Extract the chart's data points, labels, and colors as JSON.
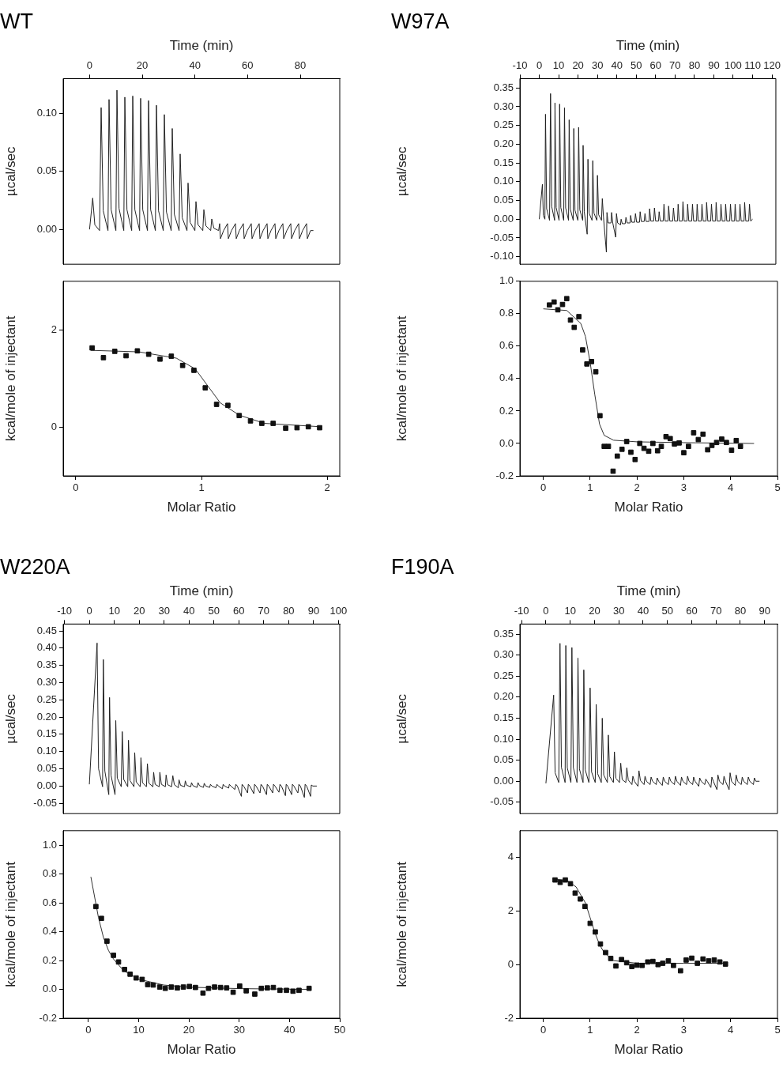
{
  "chart_data": [
    {
      "type": "line",
      "title": "WT",
      "xlabel": "Time (min)",
      "ylabel": "µcal/sec",
      "xlim": [
        -10,
        95
      ],
      "xticks": [
        0,
        20,
        40,
        60,
        80
      ],
      "ylim": [
        -0.03,
        0.13
      ],
      "yticks": [
        {
          "value": 0,
          "label": "0.00"
        },
        {
          "value": 0.05,
          "label": "0.05"
        },
        {
          "value": 0.1,
          "label": "0.10"
        }
      ],
      "series": [
        {
          "color": "#222222",
          "marker": "none",
          "x": [
            0,
            1.2,
            2.0,
            3.8,
            4.4,
            5.2,
            7.0,
            7.4,
            8.2,
            10.0,
            10.4,
            11.2,
            13.0,
            13.4,
            14.2,
            16.0,
            16.4,
            17.2,
            19.0,
            19.4,
            20.2,
            22.0,
            22.4,
            23.2,
            25.0,
            25.4,
            26.2,
            28.0,
            28.4,
            29.2,
            31.0,
            31.4,
            32.2,
            34.0,
            34.4,
            35.2,
            37.0,
            37.4,
            38.2,
            40.0,
            40.4,
            41.2,
            43.0,
            43.4,
            44.2,
            46.0,
            46.4,
            47.2,
            49.0,
            49.4,
            49.7,
            50.9,
            52.4,
            52.7,
            53.9,
            55.4,
            55.7,
            56.9,
            58.4,
            58.7,
            59.9,
            61.4,
            61.7,
            62.9,
            64.4,
            64.7,
            65.9,
            67.4,
            67.7,
            68.9,
            70.4,
            70.7,
            71.9,
            73.4,
            73.7,
            74.9,
            76.4,
            76.7,
            77.9,
            79.4,
            79.7,
            80.9,
            82.4,
            82.7,
            83.9,
            85
          ],
          "values": [
            0,
            0.027,
            0.004,
            -0.001,
            0.105,
            0.016,
            -0.001,
            0.112,
            0.017,
            -0.001,
            0.12,
            0.018,
            -0.001,
            0.114,
            0.017,
            -0.001,
            0.115,
            0.017,
            -0.001,
            0.113,
            0.017,
            -0.001,
            0.111,
            0.017,
            -0.001,
            0.107,
            0.016,
            -0.001,
            0.099,
            0.015,
            -0.001,
            0.087,
            0.013,
            -0.001,
            0.065,
            0.01,
            -0.001,
            0.04,
            0.006,
            -0.001,
            0.024,
            0.004,
            -0.001,
            0.017,
            0.003,
            -0.001,
            0.009,
            0.001,
            -0.001,
            0.005,
            -0.008,
            -0.001,
            0.005,
            -0.008,
            -0.001,
            0.005,
            -0.008,
            -0.001,
            0.005,
            -0.008,
            -0.001,
            0.005,
            -0.008,
            -0.001,
            0.005,
            -0.008,
            -0.001,
            0.005,
            -0.008,
            -0.001,
            0.005,
            -0.008,
            -0.001,
            0.005,
            -0.008,
            -0.001,
            0.005,
            -0.008,
            -0.001,
            0.005,
            -0.008,
            -0.001,
            0.005,
            -0.008,
            -0.001,
            -0.001
          ]
        }
      ]
    },
    {
      "type": "scatter",
      "xlabel": "Molar Ratio",
      "ylabel": "kcal/mole of injectant",
      "xlim": [
        -0.1,
        2.1
      ],
      "xticks": [
        0,
        1,
        2
      ],
      "ylim": [
        -1,
        3
      ],
      "yticks": [
        0,
        2
      ],
      "series": [
        {
          "type": "scatter",
          "marker": "square",
          "color": "#111111",
          "x": [
            0.13,
            0.22,
            0.31,
            0.4,
            0.49,
            0.58,
            0.67,
            0.76,
            0.85,
            0.94,
            1.03,
            1.12,
            1.21,
            1.3,
            1.39,
            1.48,
            1.57,
            1.67,
            1.76,
            1.85,
            1.94
          ],
          "values": [
            1.63,
            1.43,
            1.56,
            1.47,
            1.57,
            1.5,
            1.4,
            1.46,
            1.27,
            1.17,
            0.81,
            0.47,
            0.45,
            0.24,
            0.13,
            0.08,
            0.08,
            -0.02,
            -0.01,
            0.01,
            -0.01
          ]
        },
        {
          "type": "line",
          "marker": "none",
          "color": "#333333",
          "x": [
            0.12,
            0.5,
            0.8,
            0.95,
            1.05,
            1.15,
            1.3,
            1.5,
            1.95
          ],
          "values": [
            1.58,
            1.55,
            1.42,
            1.2,
            0.85,
            0.5,
            0.25,
            0.08,
            0.01
          ]
        }
      ]
    },
    {
      "type": "line",
      "title": "W97A",
      "xlabel": "Time (min)",
      "ylabel": "µcal/sec",
      "xlim": [
        -10,
        122
      ],
      "xticks": [
        -10,
        0,
        10,
        20,
        30,
        40,
        50,
        60,
        70,
        80,
        90,
        100,
        110,
        120
      ],
      "ylim": [
        -0.12,
        0.375
      ],
      "yticks": [
        {
          "value": -0.1,
          "label": "-0.10"
        },
        {
          "value": -0.05,
          "label": "-0.05"
        },
        {
          "value": 0,
          "label": "0.00"
        },
        {
          "value": 0.05,
          "label": "0.05"
        },
        {
          "value": 0.1,
          "label": "0.10"
        },
        {
          "value": 0.15,
          "label": "0.15"
        },
        {
          "value": 0.2,
          "label": "0.20"
        },
        {
          "value": 0.25,
          "label": "0.25"
        },
        {
          "value": 0.3,
          "label": "0.30"
        },
        {
          "value": 0.35,
          "label": "0.35"
        }
      ],
      "series": [
        {
          "color": "#222222",
          "marker": "none",
          "x": [
            0,
            1.6,
            2.1,
            2.9,
            3.2,
            3.8,
            5.3,
            5.8,
            6.4,
            7.9,
            8.1,
            8.7,
            10.2,
            10.5,
            11.1,
            12.6,
            13.0,
            13.6,
            15.1,
            15.4,
            16.0,
            17.5,
            17.8,
            18.4,
            19.9,
            20.3,
            20.9,
            22.4,
            22.6,
            23.2,
            24.7,
            25.1,
            25.7,
            27.2,
            27.6,
            28.2,
            29.7,
            30.0,
            30.6,
            32.1,
            32.5,
            33.1,
            34.6,
            34.9,
            35.5,
            37.0,
            37.3,
            37.9,
            39.4,
            39.8,
            40.4,
            41.9,
            42.2,
            42.8,
            44.3,
            44.7,
            45.3,
            46.8,
            47.1,
            47.7,
            49.2,
            49.6,
            50.2,
            51.7,
            52.0,
            52.6,
            54.1,
            54.5,
            55.1,
            56.6,
            56.9,
            57.5,
            59.0,
            59.4,
            60.0,
            61.5,
            61.8,
            62.4,
            63.9,
            64.3,
            64.9,
            66.4,
            66.7,
            67.3,
            68.8,
            69.2,
            69.8,
            71.3,
            71.6,
            72.2,
            73.7,
            74.1,
            74.7,
            76.2,
            76.5,
            77.1,
            78.6,
            79.0,
            79.6,
            81.1,
            81.4,
            82.0,
            83.5,
            83.9,
            84.5,
            86.0,
            86.3,
            86.9,
            88.4,
            88.8,
            89.4,
            90.9,
            91.2,
            91.8,
            93.3,
            93.7,
            94.3,
            95.8,
            96.1,
            96.7,
            98.2,
            98.6,
            99.2,
            100.7,
            101.0,
            101.6,
            103.1,
            103.5,
            104.1,
            105.6,
            105.9,
            106.5,
            108.0,
            108.4,
            109.0,
            110.0
          ],
          "values": [
            0,
            0.093,
            0.01,
            0,
            0.28,
            0.028,
            -0.003,
            0.335,
            0.034,
            -0.003,
            0.31,
            0.031,
            -0.003,
            0.307,
            0.031,
            -0.003,
            0.297,
            0.03,
            -0.003,
            0.265,
            0.027,
            -0.003,
            0.242,
            0.024,
            -0.003,
            0.245,
            0.025,
            -0.003,
            0.197,
            0.02,
            -0.04,
            0.16,
            0.016,
            -0.003,
            0.156,
            0.016,
            -0.003,
            0.117,
            0.012,
            -0.003,
            0.055,
            0.006,
            -0.088,
            0.018,
            -0.01,
            -0.01,
            0.018,
            -0.01,
            -0.048,
            0.015,
            -0.01,
            -0.015,
            0,
            -0.012,
            -0.012,
            0.005,
            -0.01,
            -0.01,
            0.01,
            -0.008,
            -0.008,
            0.015,
            -0.008,
            -0.008,
            0.02,
            -0.006,
            -0.006,
            0.015,
            -0.006,
            -0.006,
            0.028,
            -0.005,
            -0.005,
            0.03,
            -0.005,
            -0.005,
            0.02,
            -0.005,
            -0.005,
            0.04,
            -0.005,
            -0.005,
            0.035,
            -0.005,
            -0.005,
            0.03,
            -0.005,
            -0.005,
            0.04,
            -0.005,
            -0.005,
            0.047,
            -0.005,
            -0.005,
            0.04,
            -0.005,
            -0.005,
            0.04,
            -0.005,
            -0.005,
            0.04,
            -0.005,
            -0.005,
            0.04,
            -0.005,
            -0.005,
            0.045,
            -0.005,
            -0.005,
            0.04,
            -0.005,
            -0.005,
            0.045,
            -0.005,
            -0.005,
            0.04,
            -0.005,
            -0.005,
            0.04,
            -0.005,
            -0.005,
            0.04,
            -0.005,
            -0.005,
            0.04,
            -0.005,
            -0.005,
            0.04,
            -0.005,
            -0.005,
            0.045,
            -0.005,
            -0.005,
            0.04,
            -0.005,
            0
          ]
        }
      ]
    },
    {
      "type": "scatter",
      "xlabel": "Molar Ratio",
      "ylabel": "kcal/mole of injectant",
      "xlim": [
        -0.5,
        5
      ],
      "xticks": [
        0,
        1,
        2,
        3,
        4,
        5
      ],
      "ylim": [
        -0.2,
        1.0
      ],
      "yticks": [
        -0.2,
        {
          "value": 0,
          "label": "0.0"
        },
        0.2,
        0.4,
        0.6,
        0.8,
        {
          "value": 1,
          "label": "1.0"
        }
      ],
      "series": [
        {
          "type": "scatter",
          "marker": "square",
          "color": "#111111",
          "x": [
            0.13,
            0.23,
            0.31,
            0.41,
            0.5,
            0.58,
            0.66,
            0.76,
            0.84,
            0.93,
            1.03,
            1.12,
            1.21,
            1.3,
            1.39,
            1.49,
            1.58,
            1.68,
            1.78,
            1.87,
            1.96,
            2.06,
            2.15,
            2.25,
            2.34,
            2.44,
            2.52,
            2.62,
            2.71,
            2.8,
            2.9,
            3.0,
            3.1,
            3.21,
            3.31,
            3.41,
            3.51,
            3.6,
            3.7,
            3.81,
            3.91,
            4.02,
            4.12,
            4.21
          ],
          "values": [
            0.854,
            0.872,
            0.824,
            0.857,
            0.893,
            0.761,
            0.716,
            0.782,
            0.577,
            0.49,
            0.505,
            0.442,
            0.171,
            -0.018,
            -0.018,
            -0.171,
            -0.078,
            -0.036,
            0.012,
            -0.054,
            -0.099,
            0,
            -0.03,
            -0.048,
            0,
            -0.045,
            -0.018,
            0.042,
            0.03,
            -0.003,
            0.003,
            -0.057,
            -0.018,
            0.066,
            0.024,
            0.057,
            -0.039,
            -0.012,
            0.006,
            0.027,
            0.006,
            -0.042,
            0.018,
            -0.018
          ]
        },
        {
          "type": "line",
          "marker": "none",
          "color": "#333333",
          "x": [
            0,
            0.5,
            0.8,
            0.9,
            1.0,
            1.1,
            1.2,
            1.3,
            1.5,
            2,
            3,
            4.5
          ],
          "values": [
            0.83,
            0.82,
            0.74,
            0.66,
            0.5,
            0.3,
            0.12,
            0.05,
            0.02,
            0.01,
            0.005,
            0
          ]
        }
      ]
    },
    {
      "type": "line",
      "title": "W220A",
      "xlabel": "Time (min)",
      "ylabel": "µcal/sec",
      "xlim": [
        -10.5,
        100.5
      ],
      "xticks": [
        -10,
        0,
        10,
        20,
        30,
        40,
        50,
        60,
        70,
        80,
        90,
        100
      ],
      "ylim": [
        -0.08,
        0.47
      ],
      "yticks": [
        {
          "value": -0.05,
          "label": "-0.05"
        },
        {
          "value": 0,
          "label": "0.00"
        },
        {
          "value": 0.05,
          "label": "0.05"
        },
        {
          "value": 0.1,
          "label": "0.10"
        },
        {
          "value": 0.15,
          "label": "0.15"
        },
        {
          "value": 0.2,
          "label": "0.20"
        },
        {
          "value": 0.25,
          "label": "0.25"
        },
        {
          "value": 0.3,
          "label": "0.30"
        },
        {
          "value": 0.35,
          "label": "0.35"
        },
        {
          "value": 0.4,
          "label": "0.40"
        },
        {
          "value": 0.45,
          "label": "0.45"
        }
      ],
      "series": [
        {
          "color": "#222222",
          "marker": "none",
          "x": [
            0,
            3.1,
            3.7,
            5.3,
            5.6,
            6.2,
            7.8,
            8.1,
            8.7,
            10.3,
            10.6,
            11.2,
            12.8,
            13.2,
            13.8,
            15.4,
            15.7,
            16.3,
            17.9,
            18.2,
            18.8,
            20.4,
            20.7,
            21.3,
            22.9,
            23.3,
            23.9,
            25.5,
            25.8,
            26.4,
            28.0,
            28.3,
            28.9,
            30.5,
            30.8,
            31.4,
            33.0,
            33.5,
            34.1,
            35.7,
            36.0,
            36.6,
            38.2,
            38.5,
            39.1,
            40.7,
            41.0,
            41.6,
            43.2,
            43.6,
            44.2,
            45.8,
            46.1,
            46.7,
            48.3,
            48.6,
            49.2,
            50.8,
            51.2,
            51.8,
            53.4,
            53.7,
            54.3,
            55.9,
            56.2,
            56.8,
            58.4,
            58.8,
            59.4,
            61.0,
            61.3,
            61.9,
            63.5,
            63.8,
            64.4,
            66.0,
            66.3,
            66.9,
            68.5,
            68.9,
            69.5,
            71.1,
            71.4,
            72.0,
            73.6,
            73.9,
            74.5,
            76.1,
            76.5,
            77.1,
            78.7,
            79.0,
            79.6,
            81.2,
            81.5,
            82.1,
            83.7,
            84.1,
            84.7,
            86.3,
            86.6,
            87.2,
            88.8,
            89.1,
            89.7,
            91.3
          ],
          "values": [
            0.005,
            0.415,
            0.05,
            -0.002,
            0.367,
            0.044,
            -0.025,
            0.257,
            0.031,
            -0.025,
            0.19,
            0.023,
            -0.002,
            0.158,
            0.019,
            -0.002,
            0.133,
            0.016,
            -0.002,
            0.097,
            0.012,
            -0.002,
            0.082,
            0.01,
            -0.002,
            0.065,
            0.008,
            -0.002,
            0.04,
            0.005,
            -0.002,
            0.04,
            0.005,
            -0.002,
            0.032,
            0.004,
            -0.002,
            0.03,
            0.004,
            -0.005,
            0.018,
            0.002,
            -0.002,
            0.015,
            0.002,
            -0.002,
            0.01,
            0.001,
            -0.004,
            0.01,
            0.001,
            -0.004,
            0.008,
            0,
            -0.004,
            0.005,
            0,
            -0.005,
            0.005,
            0,
            -0.008,
            0.005,
            0,
            -0.006,
            0.005,
            0,
            -0.01,
            0.005,
            0,
            -0.03,
            0.005,
            0,
            -0.02,
            0.005,
            0,
            -0.022,
            0.005,
            0,
            -0.02,
            0.005,
            0,
            -0.025,
            0.005,
            0,
            -0.02,
            0.005,
            0,
            -0.018,
            0.005,
            0,
            -0.028,
            0.005,
            0,
            -0.025,
            0.005,
            0,
            -0.02,
            0.005,
            0,
            -0.033,
            0.005,
            0,
            -0.03,
            0.003,
            0,
            0
          ]
        }
      ]
    },
    {
      "type": "scatter",
      "xlabel": "Molar Ratio",
      "ylabel": "kcal/mole of injectant",
      "xlim": [
        -5,
        50
      ],
      "xticks": [
        0,
        10,
        20,
        30,
        40,
        50
      ],
      "ylim": [
        -0.2,
        1.1
      ],
      "yticks": [
        -0.2,
        {
          "value": 0,
          "label": "0.0"
        },
        0.2,
        0.4,
        0.6,
        0.8,
        {
          "value": 1,
          "label": "1.0"
        }
      ],
      "series": [
        {
          "type": "scatter",
          "marker": "square",
          "color": "#111111",
          "x": [
            1.5,
            2.6,
            3.7,
            5.0,
            6.0,
            7.2,
            8.3,
            9.5,
            10.7,
            11.8,
            12.9,
            14.2,
            15.3,
            16.5,
            17.7,
            18.9,
            20.1,
            21.3,
            22.8,
            23.9,
            25.1,
            26.3,
            27.5,
            28.8,
            30.1,
            31.4,
            33.1,
            34.4,
            35.6,
            36.8,
            38.1,
            39.4,
            40.7,
            41.9,
            43.9
          ],
          "values": [
            0.574,
            0.492,
            0.334,
            0.236,
            0.19,
            0.138,
            0.105,
            0.079,
            0.069,
            0.033,
            0.03,
            0.016,
            0.007,
            0.016,
            0.01,
            0.016,
            0.02,
            0.013,
            -0.026,
            0.007,
            0.016,
            0.013,
            0.01,
            -0.02,
            0.023,
            -0.01,
            -0.033,
            0.007,
            0.01,
            0.013,
            -0.007,
            -0.007,
            -0.013,
            -0.007,
            0.007
          ]
        },
        {
          "type": "line",
          "marker": "none",
          "color": "#333333",
          "x": [
            0.5,
            2,
            3,
            4,
            5,
            7,
            10,
            15,
            20,
            30,
            44
          ],
          "values": [
            0.78,
            0.5,
            0.36,
            0.27,
            0.21,
            0.13,
            0.07,
            0.03,
            0.015,
            0.005,
            0
          ]
        }
      ]
    },
    {
      "type": "line",
      "title": "F190A",
      "xlabel": "Time (min)",
      "ylabel": "µcal/sec",
      "xlim": [
        -10.7,
        95.3
      ],
      "xticks": [
        -10,
        0,
        10,
        20,
        30,
        40,
        50,
        60,
        70,
        80,
        90
      ],
      "ylim": [
        -0.077,
        0.374
      ],
      "yticks": [
        {
          "value": -0.05,
          "label": "-0.05"
        },
        {
          "value": 0,
          "label": "0.00"
        },
        {
          "value": 0.05,
          "label": "0.05"
        },
        {
          "value": 0.1,
          "label": "0.10"
        },
        {
          "value": 0.15,
          "label": "0.15"
        },
        {
          "value": 0.2,
          "label": "0.20"
        },
        {
          "value": 0.25,
          "label": "0.25"
        },
        {
          "value": 0.3,
          "label": "0.30"
        },
        {
          "value": 0.35,
          "label": "0.35"
        }
      ],
      "series": [
        {
          "color": "#222222",
          "marker": "none",
          "x": [
            0,
            3.2,
            3.8,
            5.3,
            5.8,
            6.4,
            7.9,
            8.2,
            8.8,
            10.3,
            10.7,
            11.3,
            12.8,
            13.2,
            13.8,
            15.3,
            15.6,
            16.2,
            17.7,
            18.2,
            18.8,
            20.3,
            20.7,
            21.3,
            22.8,
            23.2,
            23.8,
            25.3,
            25.7,
            26.3,
            27.8,
            28.2,
            28.8,
            30.3,
            30.8,
            31.4,
            32.9,
            33.3,
            33.9,
            35.4,
            35.8,
            36.4,
            37.9,
            38.3,
            38.9,
            40.4,
            40.8,
            41.4,
            42.9,
            43.3,
            43.9,
            45.4,
            45.8,
            46.4,
            47.9,
            48.3,
            48.9,
            50.4,
            50.8,
            51.4,
            52.9,
            53.3,
            53.9,
            55.4,
            55.8,
            56.4,
            57.9,
            58.3,
            58.9,
            60.4,
            60.8,
            61.4,
            62.9,
            63.3,
            63.9,
            65.4,
            65.8,
            66.4,
            67.9,
            68.3,
            68.9,
            70.4,
            70.8,
            71.4,
            72.9,
            73.3,
            73.9,
            75.4,
            75.8,
            76.4,
            77.9,
            78.3,
            78.9,
            80.4,
            80.8,
            81.4,
            82.9,
            83.3,
            83.9,
            85.4,
            85.8,
            86.4,
            87.9
          ],
          "values": [
            -0.005,
            0.205,
            0.02,
            -0.003,
            0.328,
            0.033,
            -0.003,
            0.323,
            0.032,
            -0.003,
            0.318,
            0.032,
            -0.003,
            0.293,
            0.029,
            -0.003,
            0.265,
            0.027,
            -0.003,
            0.222,
            0.022,
            -0.003,
            0.183,
            0.018,
            -0.003,
            0.15,
            0.015,
            -0.003,
            0.11,
            0.011,
            -0.003,
            0.07,
            0.007,
            -0.003,
            0.043,
            0.004,
            -0.003,
            0.032,
            0.003,
            -0.008,
            0.012,
            0,
            -0.012,
            0.025,
            0.002,
            -0.008,
            0.012,
            0,
            -0.008,
            0.01,
            0,
            -0.008,
            0.008,
            0,
            -0.01,
            0.01,
            0,
            -0.008,
            0.01,
            0,
            -0.008,
            0.012,
            0,
            -0.01,
            0.01,
            0,
            -0.008,
            0.012,
            0,
            -0.008,
            0.01,
            0,
            -0.012,
            0.008,
            0,
            -0.008,
            0.005,
            0,
            -0.015,
            0.01,
            0,
            -0.02,
            0.015,
            0,
            -0.008,
            0.012,
            0,
            -0.02,
            0.02,
            0,
            -0.01,
            0.015,
            0,
            -0.008,
            0.01,
            0,
            -0.008,
            0.01,
            0,
            -0.008,
            0.008,
            0,
            0
          ]
        }
      ]
    },
    {
      "type": "scatter",
      "xlabel": "Molar Ratio",
      "ylabel": "kcal/mole of injectant",
      "xlim": [
        -0.5,
        5
      ],
      "xticks": [
        0,
        1,
        2,
        3,
        4,
        5
      ],
      "ylim": [
        -2,
        5
      ],
      "yticks": [
        -2,
        0,
        2,
        4
      ],
      "series": [
        {
          "type": "scatter",
          "marker": "square",
          "color": "#111111",
          "x": [
            0.25,
            0.36,
            0.47,
            0.58,
            0.68,
            0.79,
            0.89,
            1.0,
            1.11,
            1.22,
            1.33,
            1.44,
            1.55,
            1.67,
            1.78,
            1.89,
            2.0,
            2.11,
            2.23,
            2.34,
            2.45,
            2.55,
            2.67,
            2.78,
            2.93,
            3.05,
            3.17,
            3.29,
            3.41,
            3.53,
            3.65,
            3.77,
            3.89
          ],
          "values": [
            3.16,
            3.07,
            3.16,
            3.02,
            2.67,
            2.45,
            2.17,
            1.54,
            1.22,
            0.77,
            0.45,
            0.23,
            -0.05,
            0.19,
            0.07,
            -0.07,
            -0.02,
            -0.03,
            0.1,
            0.12,
            0,
            0.05,
            0.14,
            -0.03,
            -0.23,
            0.17,
            0.24,
            0.05,
            0.21,
            0.14,
            0.17,
            0.1,
            0.02
          ]
        },
        {
          "type": "line",
          "marker": "none",
          "color": "#333333",
          "x": [
            0.2,
            0.5,
            0.7,
            0.9,
            1.0,
            1.1,
            1.2,
            1.3,
            1.5,
            2,
            3,
            3.9
          ],
          "values": [
            3.2,
            3.15,
            2.9,
            2.3,
            1.75,
            1.2,
            0.75,
            0.45,
            0.15,
            0.05,
            0.05,
            0.05
          ]
        }
      ]
    }
  ]
}
